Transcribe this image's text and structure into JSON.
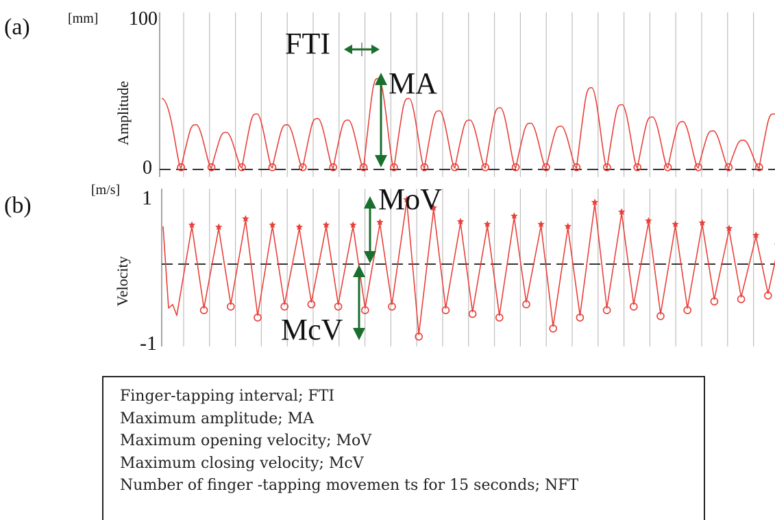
{
  "chart_data": [
    {
      "type": "line",
      "panel_label": "(a)",
      "unit": "[mm]",
      "ylabel": "Amplitude",
      "ytick_labels": [
        "100",
        "0"
      ],
      "ylim": [
        0,
        100
      ],
      "grid": "vertical",
      "baseline": "dashed at 0",
      "series": [
        {
          "marker": "circle at each minimum",
          "color": "#e8403a",
          "peak_values": [
            46,
            29,
            24,
            36,
            29,
            33,
            32,
            59,
            46,
            38,
            32,
            40,
            30,
            28,
            53,
            42,
            34,
            31,
            25,
            19,
            36
          ],
          "min_values": [
            1,
            1,
            1,
            1,
            1,
            1,
            1,
            1,
            1,
            1,
            1,
            1,
            1,
            1,
            1,
            1,
            1,
            1,
            1,
            1,
            1
          ]
        }
      ],
      "annotations": [
        {
          "text": "FTI",
          "type": "double-arrow-horizontal",
          "color": "#1a6e2e"
        },
        {
          "text": "MA",
          "type": "double-arrow-vertical",
          "color": "#1a6e2e"
        }
      ]
    },
    {
      "type": "line",
      "panel_label": "(b)",
      "unit": "[m/s]",
      "ylabel": "Velocity",
      "ytick_labels": [
        "1",
        "-1"
      ],
      "ylim": [
        -1,
        1
      ],
      "grid": "vertical",
      "baseline": "dashed at 0",
      "series": [
        {
          "color": "#e8403a",
          "max_values": [
            0.55,
            0.52,
            0.64,
            0.55,
            0.52,
            0.55,
            0.55,
            0.59,
            0.92,
            0.8,
            0.6,
            0.56,
            0.68,
            0.56,
            0.53,
            0.88,
            0.74,
            0.61,
            0.56,
            0.58,
            0.5,
            0.4,
            0.54
          ],
          "min_values": [
            -0.6,
            -0.55,
            -0.7,
            -0.55,
            -0.52,
            -0.55,
            -0.6,
            -0.55,
            -0.96,
            -0.6,
            -0.65,
            -0.7,
            -0.52,
            -0.85,
            -0.7,
            -0.6,
            -0.55,
            -0.68,
            -0.6,
            -0.48,
            -0.45,
            -0.4,
            -0.5
          ],
          "max_marker": "star",
          "min_marker": "circle"
        }
      ],
      "annotations": [
        {
          "text": "MoV",
          "type": "double-arrow-vertical",
          "color": "#1a6e2e"
        },
        {
          "text": "McV",
          "type": "double-arrow-vertical",
          "color": "#1a6e2e"
        }
      ]
    }
  ],
  "legend_lines": [
    "Finger-tapping interval; FTI",
    "Maximum amplitude;  MA",
    "Maximum opening velocity;  MoV",
    "Maximum closing velocity;  McV",
    "Number of finger -tapping movemen ts for 15 seconds; NFT"
  ]
}
